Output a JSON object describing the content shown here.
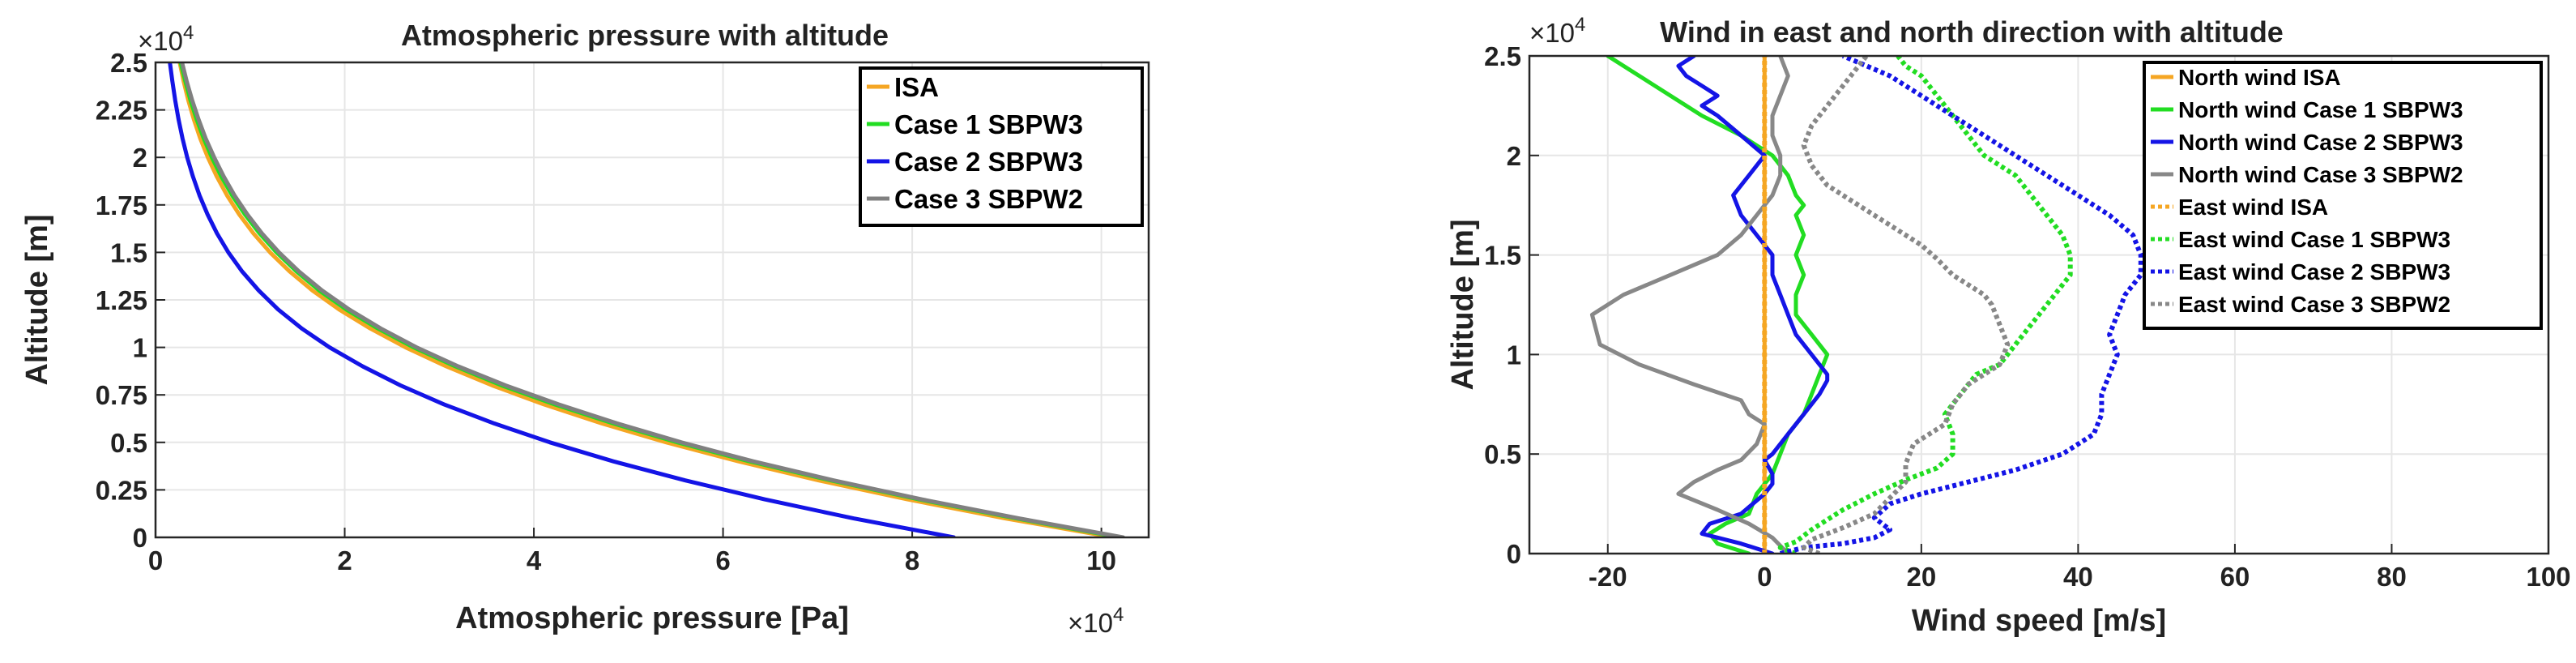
{
  "chart_data": [
    {
      "type": "line",
      "title": "Atmospheric pressure with altitude",
      "xlabel": "Atmospheric pressure [Pa]",
      "ylabel": "Altitude [m]",
      "x_multiplier": "×10^4",
      "y_multiplier": "×10^4",
      "xlim": [
        0,
        105000
      ],
      "ylim": [
        0,
        25000
      ],
      "xticks": [
        0,
        20000,
        40000,
        60000,
        80000,
        100000
      ],
      "xtick_labels": [
        "0",
        "2",
        "4",
        "6",
        "8",
        "10"
      ],
      "yticks": [
        0,
        2500,
        5000,
        7500,
        10000,
        12500,
        15000,
        17500,
        20000,
        22500,
        25000
      ],
      "ytick_labels": [
        "0",
        "0.25",
        "0.5",
        "0.75",
        "1",
        "1.25",
        "1.5",
        "1.75",
        "2",
        "2.25",
        "2.5"
      ],
      "grid": true,
      "legend_position": "top-right",
      "series": [
        {
          "name": "ISA",
          "color": "#f5a623",
          "style": "solid",
          "x": [
            101325,
            89875,
            79495,
            70108,
            61640,
            54020,
            47181,
            41061,
            35600,
            30742,
            26436,
            22700,
            19399,
            16580,
            14170,
            12112,
            10353,
            8850,
            7565,
            6467,
            5529,
            4729,
            4047,
            3467,
            2972,
            2549
          ],
          "y": [
            0,
            1000,
            2000,
            3000,
            4000,
            5000,
            6000,
            7000,
            8000,
            9000,
            10000,
            11000,
            12000,
            13000,
            14000,
            15000,
            16000,
            17000,
            18000,
            19000,
            20000,
            21000,
            22000,
            23000,
            24000,
            25000
          ]
        },
        {
          "name": "Case 1 SBPW3",
          "color": "#22dd22",
          "style": "solid",
          "x": [
            102000,
            91000,
            80700,
            71400,
            62800,
            55200,
            48400,
            42200,
            36600,
            31700,
            27300,
            23500,
            20150,
            17300,
            14900,
            12800,
            11000,
            9450,
            8100,
            6950,
            5950,
            5100,
            4350,
            3700,
            3150,
            2650
          ],
          "y": [
            0,
            1000,
            2000,
            3000,
            4000,
            5000,
            6000,
            7000,
            8000,
            9000,
            10000,
            11000,
            12000,
            13000,
            14000,
            15000,
            16000,
            17000,
            18000,
            19000,
            20000,
            21000,
            22000,
            23000,
            24000,
            25000
          ]
        },
        {
          "name": "Case 2 SBPW3",
          "color": "#1414e6",
          "style": "solid",
          "x": [
            84400,
            73800,
            64400,
            56000,
            48400,
            41700,
            35800,
            30500,
            25900,
            21900,
            18400,
            15450,
            12950,
            10900,
            9150,
            7700,
            6500,
            5500,
            4650,
            3950,
            3350,
            2850,
            2430,
            2080,
            1780,
            1520
          ],
          "y": [
            0,
            1000,
            2000,
            3000,
            4000,
            5000,
            6000,
            7000,
            8000,
            9000,
            10000,
            11000,
            12000,
            13000,
            14000,
            15000,
            16000,
            17000,
            18000,
            19000,
            20000,
            21000,
            22000,
            23000,
            24000,
            25000
          ]
        },
        {
          "name": "Case 3 SBPW2",
          "color": "#808080",
          "style": "solid",
          "x": [
            102300,
            91300,
            81000,
            71700,
            63200,
            55600,
            48800,
            42600,
            37000,
            32000,
            27600,
            23800,
            20450,
            17600,
            15150,
            13050,
            11250,
            9700,
            8350,
            7200,
            6200,
            5300,
            4550,
            3880,
            3300,
            2800
          ],
          "y": [
            0,
            1000,
            2000,
            3000,
            4000,
            5000,
            6000,
            7000,
            8000,
            9000,
            10000,
            11000,
            12000,
            13000,
            14000,
            15000,
            16000,
            17000,
            18000,
            19000,
            20000,
            21000,
            22000,
            23000,
            24000,
            25000
          ]
        }
      ]
    },
    {
      "type": "line",
      "title": "Wind in east and north direction with altitude",
      "xlabel": "Wind speed [m/s]",
      "ylabel": "Altitude [m]",
      "y_multiplier": "×10^4",
      "xlim": [
        -30,
        100
      ],
      "ylim": [
        0,
        25000
      ],
      "xticks": [
        -20,
        0,
        20,
        40,
        60,
        80,
        100
      ],
      "xtick_labels": [
        "-20",
        "0",
        "20",
        "40",
        "60",
        "80",
        "100"
      ],
      "yticks": [
        0,
        5000,
        10000,
        15000,
        20000,
        25000
      ],
      "ytick_labels": [
        "0",
        "0.5",
        "1",
        "1.5",
        "2",
        "2.5"
      ],
      "grid": true,
      "legend_position": "top-right",
      "series": [
        {
          "name": "North wind ISA",
          "color": "#f5a623",
          "style": "solid",
          "x": [
            0,
            0
          ],
          "y": [
            0,
            25000
          ]
        },
        {
          "name": "North wind Case 1 SBPW3",
          "color": "#22dd22",
          "style": "solid",
          "x": [
            -2,
            -6,
            -7,
            -5,
            -2,
            -1,
            1,
            2,
            3,
            5,
            6,
            7,
            8,
            6,
            4,
            4,
            5,
            4,
            5,
            4,
            5,
            4,
            3,
            1,
            -3,
            -8,
            -14,
            -20
          ],
          "y": [
            0,
            500,
            1000,
            1500,
            2000,
            3000,
            4000,
            5000,
            6000,
            7000,
            8000,
            9000,
            10000,
            11000,
            12000,
            13000,
            14000,
            15000,
            16000,
            17000,
            17500,
            18000,
            19000,
            20000,
            21000,
            22000,
            23500,
            25000
          ]
        },
        {
          "name": "North wind Case 2 SBPW3",
          "color": "#1414e6",
          "style": "solid",
          "x": [
            1,
            -3,
            -8,
            -7,
            -3,
            0,
            1,
            1,
            0,
            1,
            3,
            5,
            7,
            8,
            8,
            6,
            4,
            3,
            2,
            1,
            1,
            -1,
            -3,
            -4,
            -2,
            0,
            -3,
            -6,
            -8,
            -6,
            -8,
            -10,
            -11,
            -9
          ],
          "y": [
            0,
            500,
            1000,
            1500,
            2000,
            3000,
            3500,
            4000,
            4700,
            5000,
            6000,
            7000,
            8000,
            8700,
            9000,
            10000,
            11000,
            12000,
            13000,
            14000,
            15000,
            16000,
            17000,
            18000,
            19000,
            20000,
            21000,
            22000,
            22500,
            23000,
            23500,
            24000,
            24500,
            25000
          ]
        },
        {
          "name": "North wind Case 3 SBPW2",
          "color": "#888888",
          "style": "solid",
          "x": [
            3,
            1,
            -2,
            -6,
            -11,
            -9,
            -6,
            -3,
            -1,
            0,
            -2,
            -3,
            -9,
            -16,
            -21,
            -22,
            -18,
            -12,
            -6,
            -3,
            -1,
            1,
            2,
            2,
            1,
            1,
            2,
            3,
            2
          ],
          "y": [
            0,
            800,
            1500,
            2200,
            3000,
            3600,
            4200,
            4700,
            5500,
            6500,
            7000,
            7700,
            8500,
            9500,
            10500,
            12000,
            13000,
            14000,
            15000,
            16000,
            17000,
            18000,
            19000,
            20000,
            21000,
            22000,
            23000,
            24000,
            25000
          ]
        },
        {
          "name": "East wind ISA",
          "color": "#f5a623",
          "style": "dotted",
          "x": [
            0,
            0
          ],
          "y": [
            0,
            25000
          ]
        },
        {
          "name": "East wind Case 1 SBPW3",
          "color": "#22dd22",
          "style": "dotted",
          "x": [
            4,
            2,
            4,
            6,
            10,
            14,
            18,
            22,
            24,
            24,
            23,
            25,
            27,
            30,
            31,
            32,
            33,
            35,
            37,
            39,
            39,
            38,
            36,
            34,
            32,
            30,
            28,
            26,
            24,
            22,
            20,
            18,
            17
          ],
          "y": [
            0,
            300,
            600,
            1200,
            2200,
            3000,
            3700,
            4300,
            5000,
            6000,
            7000,
            8000,
            9000,
            9500,
            10000,
            10500,
            11000,
            12000,
            13000,
            14000,
            15000,
            16000,
            17000,
            18000,
            19000,
            19500,
            20000,
            21000,
            22000,
            23000,
            24000,
            24500,
            25000
          ]
        },
        {
          "name": "East wind Case 2 SBPW3",
          "color": "#1414e6",
          "style": "dotted",
          "x": [
            2,
            5,
            10,
            14,
            16,
            14,
            16,
            20,
            26,
            32,
            38,
            42,
            43,
            43,
            44,
            45,
            44,
            45,
            46,
            48,
            48,
            47,
            44,
            40,
            36,
            32,
            28,
            24,
            20,
            16,
            13,
            10
          ],
          "y": [
            0,
            300,
            500,
            800,
            1200,
            1800,
            2500,
            3000,
            3600,
            4200,
            5000,
            6000,
            7000,
            8000,
            9000,
            10000,
            11000,
            12000,
            13000,
            14000,
            15000,
            16000,
            17000,
            18000,
            19000,
            20000,
            21000,
            22000,
            23000,
            24000,
            24500,
            25000
          ]
        },
        {
          "name": "East wind Case 3 SBPW2",
          "color": "#888888",
          "style": "dotted",
          "x": [
            7,
            5,
            6,
            10,
            14,
            16,
            18,
            18,
            19,
            23,
            24,
            26,
            28,
            30,
            31,
            30,
            29,
            28,
            26,
            24,
            22,
            20,
            16,
            12,
            8,
            6,
            5,
            6,
            8,
            10,
            13
          ],
          "y": [
            0,
            300,
            700,
            1300,
            2000,
            2800,
            3600,
            4500,
            5500,
            6500,
            7500,
            8500,
            9000,
            9500,
            10500,
            11500,
            12500,
            13000,
            13500,
            14000,
            14800,
            15500,
            16500,
            17500,
            18500,
            19500,
            20500,
            21500,
            22500,
            23500,
            25000
          ]
        }
      ]
    }
  ]
}
